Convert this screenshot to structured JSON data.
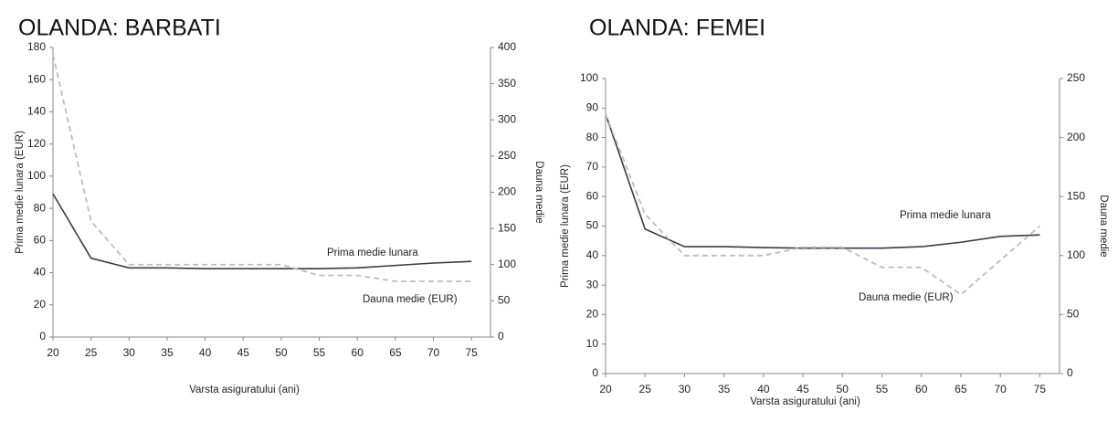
{
  "chart_data": [
    {
      "type": "line",
      "title": "OLANDA: BARBATI",
      "x_label": "Varsta asiguratului (ani)",
      "y_label": "Prima medie lunara (EUR)",
      "y2_label": "Dauna medie",
      "x": [
        20,
        25,
        30,
        35,
        40,
        45,
        50,
        55,
        60,
        65,
        70,
        75
      ],
      "xlim": [
        20,
        77.5
      ],
      "xticks": [
        20,
        25,
        30,
        35,
        40,
        45,
        50,
        55,
        60,
        65,
        70,
        75
      ],
      "ylim": [
        0,
        180
      ],
      "yticks": [
        0,
        20,
        40,
        60,
        80,
        100,
        120,
        140,
        160,
        180
      ],
      "y2lim": [
        0,
        400
      ],
      "y2ticks": [
        0,
        50,
        100,
        150,
        200,
        250,
        300,
        350,
        400
      ],
      "series": [
        {
          "name": "Prima medie lunara",
          "color": "#3a3a48",
          "values": [
            89,
            49,
            43,
            43,
            42.5,
            42.5,
            42.5,
            42.5,
            43,
            44.5,
            46,
            47
          ]
        },
        {
          "name": "Dauna medie (EUR)",
          "color": "#bdbdbd",
          "dashed": true,
          "axis": "y2",
          "values": [
            390,
            160,
            100,
            100,
            100,
            100,
            100,
            85,
            85,
            77,
            77,
            77
          ]
        }
      ]
    },
    {
      "type": "line",
      "title": "OLANDA: FEMEI",
      "x_label": "Varsta asiguratului (ani)",
      "y_label": "Prima medie lunara (EUR)",
      "y2_label": "Dauna medie",
      "x": [
        20,
        25,
        30,
        35,
        40,
        45,
        50,
        55,
        60,
        65,
        70,
        75
      ],
      "xlim": [
        20,
        77.5
      ],
      "xticks": [
        20,
        25,
        30,
        35,
        40,
        45,
        50,
        55,
        60,
        65,
        70,
        75
      ],
      "ylim": [
        0,
        100
      ],
      "yticks": [
        0,
        10,
        20,
        30,
        40,
        50,
        60,
        70,
        80,
        90,
        100
      ],
      "y2lim": [
        0,
        250
      ],
      "y2ticks": [
        0,
        50,
        100,
        150,
        200,
        250
      ],
      "series": [
        {
          "name": "Prima medie lunara",
          "color": "#3a3a48",
          "values": [
            88,
            49,
            43,
            43,
            42.7,
            42.5,
            42.5,
            42.5,
            43,
            44.5,
            46.5,
            47
          ]
        },
        {
          "name": "Dauna medie (EUR)",
          "color": "#bdbdbd",
          "dashed": true,
          "axis": "y2",
          "values": [
            220,
            135,
            100,
            100,
            100,
            107,
            107,
            90,
            90,
            67,
            96,
            125
          ]
        }
      ]
    }
  ]
}
